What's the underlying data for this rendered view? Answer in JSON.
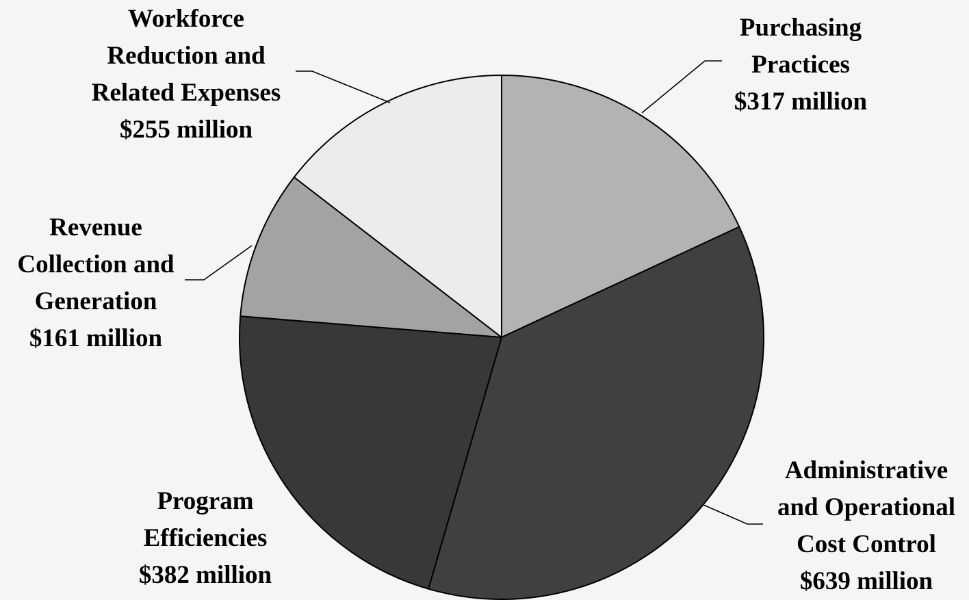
{
  "chart_data": {
    "type": "pie",
    "start_angle_deg": 0,
    "direction": "clockwise",
    "slices": [
      {
        "name": "Purchasing Practices",
        "value": 317,
        "label_lines": [
          "Purchasing",
          "Practices",
          "$317 million"
        ],
        "color": "#b3b3b3"
      },
      {
        "name": "Administrative and Operational Cost Control",
        "value": 639,
        "label_lines": [
          "Administrative",
          "and Operational",
          "Cost Control",
          "$639 million"
        ],
        "color": "#404040"
      },
      {
        "name": "Program Efficiencies",
        "value": 382,
        "label_lines": [
          "Program",
          "Efficiencies",
          "$382 million"
        ],
        "color": "#383838"
      },
      {
        "name": "Revenue Collection and Generation",
        "value": 161,
        "label_lines": [
          "Revenue",
          "Collection and",
          "Generation",
          "$161 million"
        ],
        "color": "#a3a3a3"
      },
      {
        "name": "Workforce Reduction and Related Expenses",
        "value": 255,
        "label_lines": [
          "Workforce",
          "Reduction and",
          "Related Expenses",
          "$255 million"
        ],
        "color": "#ececec"
      }
    ]
  }
}
